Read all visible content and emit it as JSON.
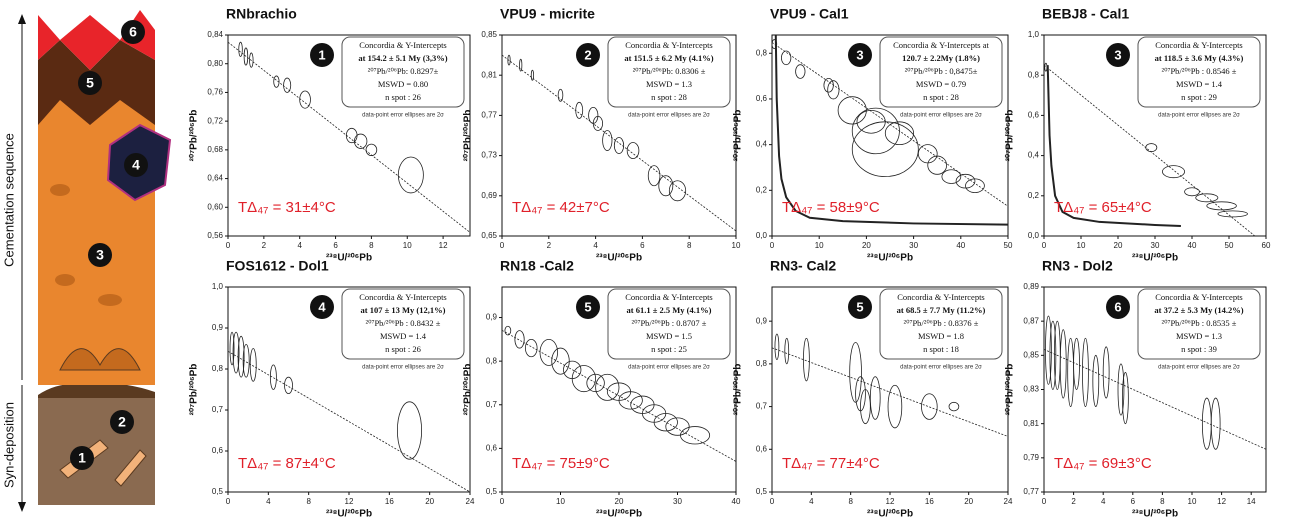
{
  "column": {
    "labels": [
      "6",
      "5",
      "4",
      "3",
      "2",
      "1"
    ],
    "sequence_label": "Cementation sequence",
    "syn_label": "Syn-deposition"
  },
  "chart_data": [
    {
      "type": "concordia",
      "title": "RNbrachio",
      "badge": "1",
      "temperature": "TΔ₄₇ = 31±4°C",
      "xlabel": "²³⁸U/²⁰⁶Pb",
      "ylabel": "²⁰⁷Pb/²⁰⁶Pb",
      "box": [
        "Concordia & Y-Intercepts",
        "at 154.2 ± 5.1 My (3,3%)",
        "²⁰⁷Pb/²⁰⁶Pb: 0.8297±",
        "MSWD = 0.80",
        "n spot : 26"
      ],
      "note": "data-point error ellipses are 2σ",
      "xlim": [
        0,
        13.5
      ],
      "ylim": [
        0.56,
        0.84
      ],
      "xticks": [
        0,
        2,
        4,
        6,
        8,
        10,
        12
      ],
      "yticks": [
        {
          "value": 0.56,
          "label": "0,56"
        },
        {
          "value": 0.6,
          "label": "0,60"
        },
        {
          "value": 0.64,
          "label": "0,64"
        },
        {
          "value": 0.68,
          "label": "0,68"
        },
        {
          "value": 0.72,
          "label": "0,72"
        },
        {
          "value": 0.76,
          "label": "0,76"
        },
        {
          "value": 0.8,
          "label": "0,80"
        },
        {
          "value": 0.84,
          "label": "0,84"
        }
      ],
      "points": {
        "x": [
          0.7,
          1.0,
          1.3,
          2.7,
          3.3,
          4.3,
          6.9,
          7.4,
          8.0,
          10.2
        ],
        "y": [
          0.82,
          0.81,
          0.805,
          0.775,
          0.77,
          0.75,
          0.7,
          0.692,
          0.68,
          0.645
        ],
        "x_err": [
          0.1,
          0.1,
          0.1,
          0.15,
          0.2,
          0.3,
          0.3,
          0.35,
          0.3,
          0.7
        ],
        "y_err": [
          0.01,
          0.012,
          0.01,
          0.008,
          0.01,
          0.012,
          0.01,
          0.01,
          0.008,
          0.025
        ]
      },
      "line": {
        "x": [
          0,
          13.5
        ],
        "y": [
          0.83,
          0.565
        ]
      }
    },
    {
      "type": "concordia",
      "title": "VPU9 - micrite",
      "badge": "2",
      "temperature": "TΔ₄₇ = 42±7°C",
      "xlabel": "²³⁸U/²⁰⁶Pb",
      "ylabel": "²⁰⁷Pb/²⁰⁶Pb",
      "box": [
        "Concordia & Y-Intercepts",
        "at 151.5 ± 6.2 My (4.1%)",
        "²⁰⁷Pb/²⁰⁶Pb: 0.8306 ±",
        "MSWD = 1.3",
        "n spot : 28"
      ],
      "note": "data-point error ellipses are 2σ",
      "xlim": [
        0,
        10
      ],
      "ylim": [
        0.65,
        0.85
      ],
      "xticks": [
        0,
        2,
        4,
        6,
        8,
        10
      ],
      "yticks": [
        {
          "value": 0.65,
          "label": "0,65"
        },
        {
          "value": 0.69,
          "label": "0,69"
        },
        {
          "value": 0.73,
          "label": "0,73"
        },
        {
          "value": 0.77,
          "label": "0,77"
        },
        {
          "value": 0.81,
          "label": "0,81"
        },
        {
          "value": 0.85,
          "label": "0,85"
        }
      ],
      "points": {
        "x": [
          0.3,
          0.8,
          1.3,
          2.5,
          3.3,
          3.9,
          4.1,
          4.5,
          5.0,
          5.6,
          6.5,
          7.0,
          7.5
        ],
        "y": [
          0.825,
          0.82,
          0.81,
          0.79,
          0.775,
          0.77,
          0.762,
          0.745,
          0.74,
          0.735,
          0.71,
          0.7,
          0.695
        ],
        "x_err": [
          0.05,
          0.05,
          0.05,
          0.1,
          0.15,
          0.2,
          0.2,
          0.2,
          0.2,
          0.25,
          0.25,
          0.3,
          0.35
        ],
        "y_err": [
          0.005,
          0.006,
          0.005,
          0.006,
          0.008,
          0.008,
          0.007,
          0.01,
          0.008,
          0.008,
          0.01,
          0.01,
          0.01
        ]
      },
      "line": {
        "x": [
          0,
          10
        ],
        "y": [
          0.83,
          0.655
        ]
      }
    },
    {
      "type": "concordia",
      "title": "VPU9 - Cal1",
      "badge": "3",
      "temperature": "TΔ₄₇ = 58±9°C",
      "xlabel": "²³⁸U/²⁰⁶Pb",
      "ylabel": "²⁰⁷Pb/²⁰⁶Pb",
      "box": [
        "Concordia & Y-Intercepts at",
        "120.7 ± 2.2My (1.8%)",
        "²⁰⁷Pb/²⁰⁶Pb : 0,8475±",
        "MSWD = 0.79",
        "n spot : 28"
      ],
      "note": "data-point error ellipses are 2σ",
      "xlim": [
        0,
        50
      ],
      "ylim": [
        0,
        0.88
      ],
      "xticks": [
        0,
        10,
        20,
        30,
        40,
        50
      ],
      "yticks": [
        {
          "value": 0,
          "label": "0,0"
        },
        {
          "value": 0.2,
          "label": "0,2"
        },
        {
          "value": 0.4,
          "label": "0,4"
        },
        {
          "value": 0.6,
          "label": "0,6"
        },
        {
          "value": 0.8,
          "label": "0,8"
        }
      ],
      "points": {
        "x": [
          0.5,
          3,
          6,
          12,
          13,
          17,
          21,
          22,
          24,
          27,
          33,
          35,
          38,
          41,
          43
        ],
        "y": [
          0.84,
          0.78,
          0.72,
          0.66,
          0.64,
          0.55,
          0.5,
          0.46,
          0.38,
          0.45,
          0.36,
          0.31,
          0.26,
          0.24,
          0.22
        ],
        "x_err": [
          0.5,
          1,
          1,
          1,
          1.2,
          3,
          3,
          5,
          7,
          3,
          2,
          2,
          2,
          2,
          2
        ],
        "y_err": [
          0.02,
          0.03,
          0.03,
          0.03,
          0.04,
          0.06,
          0.05,
          0.1,
          0.12,
          0.05,
          0.04,
          0.04,
          0.03,
          0.03,
          0.03
        ]
      },
      "line": {
        "x": [
          0,
          50
        ],
        "y": [
          0.8475,
          0.13
        ]
      },
      "concordia": {
        "x": [
          0.8,
          1,
          1.5,
          2,
          3,
          5,
          8,
          15,
          30,
          50
        ],
        "y": [
          0.88,
          0.6,
          0.35,
          0.25,
          0.17,
          0.11,
          0.08,
          0.065,
          0.055,
          0.05
        ]
      }
    },
    {
      "type": "concordia",
      "title": "BEBJ8 - Cal1",
      "badge": "3",
      "temperature": "TΔ₄₇ = 65±4°C",
      "xlabel": "²³⁸U/²⁰⁶Pb",
      "ylabel": "²⁰⁷Pb/²⁰⁶Pb",
      "box": [
        "Concordia & Y-Intercepts",
        "at 118.5 ± 3.6 My (4.3%)",
        "²⁰⁷Pb/²⁰⁶Pb : 0.8546 ±",
        "MSWD = 1.4",
        "n spot : 29"
      ],
      "note": "data-point error ellipses are 2σ",
      "xlim": [
        0,
        60
      ],
      "ylim": [
        0,
        1
      ],
      "xticks": [
        0,
        10,
        20,
        30,
        40,
        50,
        60
      ],
      "yticks": [
        {
          "value": 0,
          "label": "0,0"
        },
        {
          "value": 0.2,
          "label": "0,2"
        },
        {
          "value": 0.4,
          "label": "0,4"
        },
        {
          "value": 0.6,
          "label": "0,6"
        },
        {
          "value": 0.8,
          "label": "0,8"
        },
        {
          "value": 1,
          "label": "1,0"
        }
      ],
      "points": {
        "x": [
          0.5,
          29,
          35,
          40,
          44,
          48,
          51
        ],
        "y": [
          0.84,
          0.44,
          0.32,
          0.22,
          0.19,
          0.15,
          0.11
        ],
        "x_err": [
          0.3,
          1.5,
          3,
          2,
          3,
          4,
          4
        ],
        "y_err": [
          0.02,
          0.02,
          0.03,
          0.02,
          0.02,
          0.02,
          0.015
        ]
      },
      "line": {
        "x": [
          0,
          57
        ],
        "y": [
          0.85,
          0
        ]
      },
      "concordia": {
        "x": [
          1,
          1.5,
          2,
          3,
          5,
          8,
          15,
          30,
          37
        ],
        "y": [
          0.85,
          0.5,
          0.35,
          0.2,
          0.12,
          0.09,
          0.07,
          0.055,
          0.05
        ]
      }
    },
    {
      "type": "concordia",
      "title": "FOS1612 - Dol1",
      "badge": "4",
      "temperature": "TΔ₄₇ = 87±4°C",
      "xlabel": "²³⁸U/²⁰⁶Pb",
      "ylabel": "²⁰⁷Pb/²⁰⁶Pb",
      "box": [
        "Concordia & Y-Intercepts",
        "at 107 ± 13 My (12,1%)",
        "²⁰⁷Pb/²⁰⁶Pb : 0.8432 ±",
        "MSWD = 1.4",
        "n spot : 26"
      ],
      "note": "data-point error ellipses are 2σ",
      "xlim": [
        0,
        24
      ],
      "ylim": [
        0.5,
        1
      ],
      "xticks": [
        0,
        4,
        8,
        12,
        16,
        20,
        24
      ],
      "yticks": [
        {
          "value": 0.5,
          "label": "0,5"
        },
        {
          "value": 0.6,
          "label": "0,6"
        },
        {
          "value": 0.7,
          "label": "0,7"
        },
        {
          "value": 0.8,
          "label": "0,8"
        },
        {
          "value": 0.9,
          "label": "0,9"
        },
        {
          "value": 1,
          "label": "1,0"
        }
      ],
      "points": {
        "x": [
          0.4,
          0.8,
          1.3,
          1.8,
          2.5,
          4.5,
          6,
          18
        ],
        "y": [
          0.85,
          0.84,
          0.83,
          0.82,
          0.81,
          0.78,
          0.76,
          0.65
        ],
        "x_err": [
          0.2,
          0.3,
          0.3,
          0.3,
          0.3,
          0.3,
          0.4,
          1.2
        ],
        "y_err": [
          0.04,
          0.05,
          0.05,
          0.04,
          0.04,
          0.03,
          0.02,
          0.07
        ]
      },
      "line": {
        "x": [
          0,
          24
        ],
        "y": [
          0.8432,
          0.5
        ]
      }
    },
    {
      "type": "concordia",
      "title": "RN18 -Cal2",
      "badge": "5",
      "temperature": "TΔ₄₇ = 75±9°C",
      "xlabel": "²³⁸U/²⁰⁶Pb",
      "ylabel": "²⁰⁷Pb/²⁰⁶Pb",
      "box": [
        "Concordia & Y-Intercepts",
        "at 61.1 ± 2.5 My (4.1%)",
        "²⁰⁷Pb/²⁰⁶Pb : 0.8707 ±",
        "MSWD = 1.5",
        "n spot : 25"
      ],
      "note": "data-point error ellipses are 2σ",
      "xlim": [
        0,
        40
      ],
      "ylim": [
        0.5,
        0.97
      ],
      "xticks": [
        0,
        10,
        20,
        30,
        40
      ],
      "yticks": [
        {
          "value": 0.5,
          "label": "0,5"
        },
        {
          "value": 0.6,
          "label": "0,6"
        },
        {
          "value": 0.7,
          "label": "0,7"
        },
        {
          "value": 0.8,
          "label": "0,8"
        },
        {
          "value": 0.9,
          "label": "0,9"
        }
      ],
      "points": {
        "x": [
          1,
          3,
          5,
          8,
          10,
          12,
          14,
          16,
          18,
          20,
          22,
          24,
          26,
          28,
          30,
          33
        ],
        "y": [
          0.87,
          0.85,
          0.83,
          0.82,
          0.8,
          0.78,
          0.76,
          0.75,
          0.74,
          0.73,
          0.71,
          0.7,
          0.68,
          0.66,
          0.65,
          0.63
        ],
        "x_err": [
          0.5,
          0.8,
          1,
          1.5,
          1.5,
          1.5,
          2,
          1.5,
          2,
          2,
          2,
          2,
          2,
          2,
          2,
          2.5
        ],
        "y_err": [
          0.01,
          0.02,
          0.02,
          0.03,
          0.03,
          0.02,
          0.03,
          0.02,
          0.03,
          0.02,
          0.02,
          0.02,
          0.02,
          0.02,
          0.02,
          0.02
        ]
      },
      "line": {
        "x": [
          0,
          40
        ],
        "y": [
          0.8707,
          0.57
        ]
      }
    },
    {
      "type": "concordia",
      "title": "RN3- Cal2",
      "badge": "5",
      "temperature": "TΔ₄₇ = 77±4°C",
      "xlabel": "²³⁸U/²⁰⁶Pb",
      "ylabel": "²⁰⁷Pb/²⁰⁶Pb",
      "box": [
        "Concordia & Y-Intercepts",
        "at 68.5 ± 7.7 My (11.2%)",
        "²⁰⁷Pb/²⁰⁶Pb : 0.8376 ±",
        "MSWD = 1.8",
        "n spot : 18"
      ],
      "note": "data-point error ellipses are 2σ",
      "xlim": [
        0,
        24
      ],
      "ylim": [
        0.5,
        0.98
      ],
      "xticks": [
        0,
        4,
        8,
        12,
        16,
        20,
        24
      ],
      "yticks": [
        {
          "value": 0.5,
          "label": "0,5"
        },
        {
          "value": 0.6,
          "label": "0,6"
        },
        {
          "value": 0.7,
          "label": "0,7"
        },
        {
          "value": 0.8,
          "label": "0,8"
        },
        {
          "value": 0.9,
          "label": "0,9"
        }
      ],
      "points": {
        "x": [
          0.5,
          1.5,
          3.5,
          8.5,
          9,
          9.5,
          10.5,
          12.5,
          16,
          18.5
        ],
        "y": [
          0.84,
          0.83,
          0.81,
          0.78,
          0.73,
          0.7,
          0.72,
          0.7,
          0.7,
          0.7
        ],
        "x_err": [
          0.2,
          0.2,
          0.3,
          0.6,
          0.5,
          0.5,
          0.5,
          0.7,
          0.8,
          0.5
        ],
        "y_err": [
          0.03,
          0.03,
          0.05,
          0.07,
          0.04,
          0.04,
          0.05,
          0.05,
          0.03,
          0.01
        ]
      },
      "line": {
        "x": [
          0,
          24
        ],
        "y": [
          0.8376,
          0.63
        ]
      }
    },
    {
      "type": "concordia",
      "title": "RN3 - Dol2",
      "badge": "6",
      "temperature": "TΔ₄₇ = 69±3°C",
      "xlabel": "²³⁸U/²⁰⁶Pb",
      "ylabel": "²⁰⁷Pb/²⁰⁶Pb",
      "box": [
        "Concordia & Y-Intercepts",
        "at 37.2 ± 5.3 My (14.2%)",
        "²⁰⁷Pb/²⁰⁶Pb : 0.8535 ±",
        "MSWD = 1.3",
        "n spot : 39"
      ],
      "note": "data-point error ellipses are 2σ",
      "xlim": [
        0,
        15
      ],
      "ylim": [
        0.77,
        0.89
      ],
      "xticks": [
        0,
        2,
        4,
        6,
        8,
        10,
        12,
        14
      ],
      "yticks": [
        {
          "value": 0.77,
          "label": "0,77"
        },
        {
          "value": 0.79,
          "label": "0,79"
        },
        {
          "value": 0.81,
          "label": "0,81"
        },
        {
          "value": 0.83,
          "label": "0,83"
        },
        {
          "value": 0.85,
          "label": "0,85"
        },
        {
          "value": 0.87,
          "label": "0,87"
        },
        {
          "value": 0.89,
          "label": "0,89"
        }
      ],
      "points": {
        "x": [
          0.3,
          0.6,
          0.9,
          1.3,
          1.8,
          2.2,
          2.8,
          3.5,
          4.2,
          5.2,
          5.5,
          11,
          11.6
        ],
        "y": [
          0.853,
          0.85,
          0.85,
          0.845,
          0.84,
          0.845,
          0.84,
          0.835,
          0.84,
          0.83,
          0.825,
          0.81,
          0.81
        ],
        "x_err": [
          0.2,
          0.2,
          0.2,
          0.2,
          0.2,
          0.2,
          0.2,
          0.2,
          0.2,
          0.2,
          0.2,
          0.3,
          0.3
        ],
        "y_err": [
          0.02,
          0.02,
          0.02,
          0.02,
          0.02,
          0.015,
          0.02,
          0.015,
          0.015,
          0.015,
          0.015,
          0.015,
          0.015
        ]
      },
      "line": {
        "x": [
          0,
          15
        ],
        "y": [
          0.8535,
          0.795
        ]
      }
    }
  ]
}
